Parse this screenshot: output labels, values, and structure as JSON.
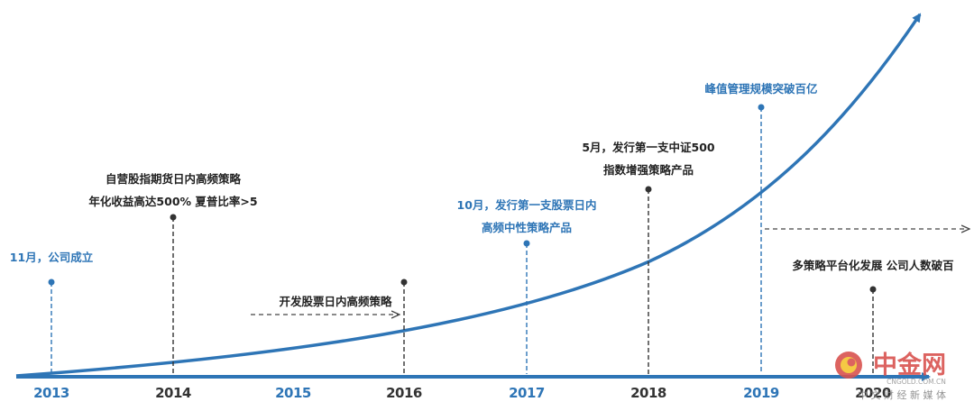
{
  "years": [
    "2013",
    "2014",
    "2015",
    "2016",
    "2017",
    "2018",
    "2019",
    "2020"
  ],
  "events": {
    "e2013": {
      "line1": "11月，公司成立"
    },
    "e2014": {
      "line1": "自营股指期货日内高频策略",
      "line2": "年化收益高达500% 夏普比率>5"
    },
    "e2016": {
      "line1": "开发股票日内高频策略"
    },
    "e2017": {
      "line1": "10月，发行第一支股票日内",
      "line2": "高频中性策略产品"
    },
    "e2018": {
      "line1": "5月，发行第一支中证500",
      "line2": "指数增强策略产品"
    },
    "e2019": {
      "line1": "峰值管理规模突破百亿"
    },
    "e2020": {
      "line1": "多策略平台化发展 公司人数破百"
    }
  },
  "watermark": {
    "brand": "中金网",
    "url": "CNGOLD.COM.CN",
    "tagline": "中 文 财 经 新 媒 体"
  },
  "colors": {
    "blue": "#2e75b6",
    "dark": "#222222",
    "dashed_gray": "#444444",
    "watermark_red": "#d9534f"
  }
}
